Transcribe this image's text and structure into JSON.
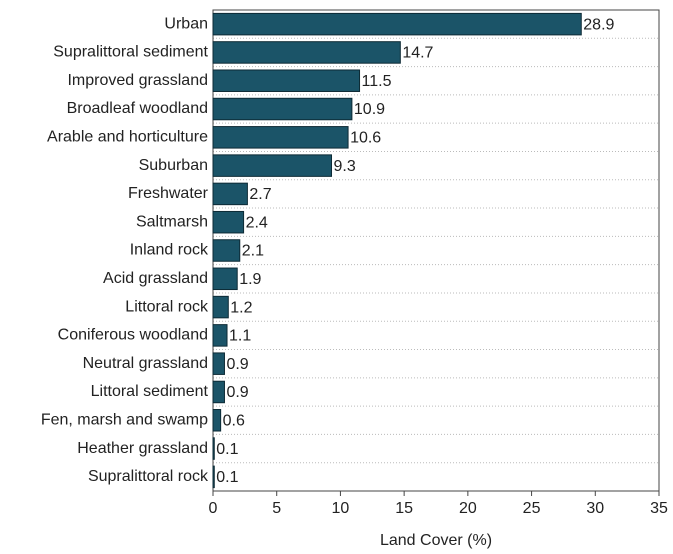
{
  "chart_data": {
    "type": "barh",
    "categories": [
      "Urban",
      "Supralittoral sediment",
      "Improved grassland",
      "Broadleaf woodland",
      "Arable and horticulture",
      "Suburban",
      "Freshwater",
      "Saltmarsh",
      "Inland rock",
      "Acid grassland",
      "Littoral rock",
      "Coniferous woodland",
      "Neutral grassland",
      "Littoral sediment",
      "Fen, marsh and swamp",
      "Heather grassland",
      "Supralittoral rock"
    ],
    "values": [
      28.9,
      14.7,
      11.5,
      10.9,
      10.6,
      9.3,
      2.7,
      2.4,
      2.1,
      1.9,
      1.2,
      1.1,
      0.9,
      0.9,
      0.6,
      0.1,
      0.1
    ],
    "color": "#1b5468",
    "xlabel": "Land Cover (%)",
    "xlim": [
      0,
      35
    ],
    "xticks": [
      0,
      5,
      10,
      15,
      20,
      25,
      30,
      35
    ]
  }
}
